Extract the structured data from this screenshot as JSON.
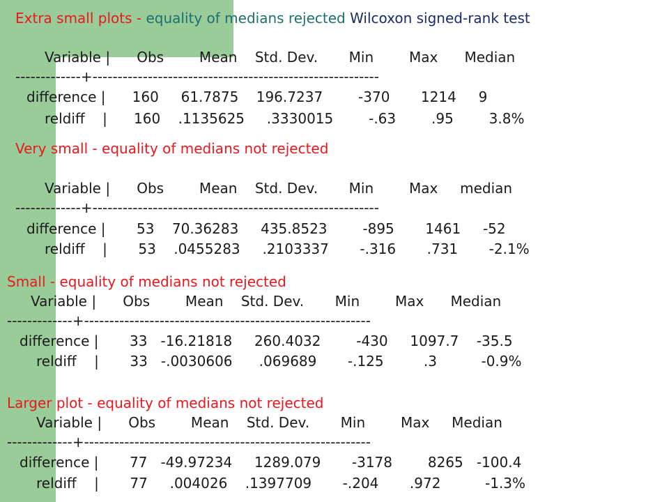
{
  "sections": [
    {
      "title_red": "Extra small plots - ",
      "title_teal": "equality of medians rejected",
      "title_navy": " Wilcoxon signed-rank test",
      "header": "Variable |      Obs        Mean    Std. Dev.       Min        Max      Median",
      "rule": "-------------+---------------------------------------------------------",
      "rows": [
        "difference |      160     61.7875    196.7237        -370       1214     9",
        "reldiff    |      160    .1135625     .3330015        -.63        .95        3.8%"
      ]
    },
    {
      "title_red": "Very small - equality of medians not rejected",
      "header": "Variable |      Obs        Mean    Std. Dev.       Min        Max     median",
      "rule": "-------------+---------------------------------------------------------",
      "rows": [
        "difference |       53    70.36283     435.8523        -895       1461     -52",
        "reldiff    |       53    .0455283     .2103337       -.316       .731       -2.1%"
      ]
    },
    {
      "title_red": "Small - equality of medians not rejected",
      "header": "Variable |      Obs        Mean    Std. Dev.       Min        Max      Median",
      "rule": "-------------+---------------------------------------------------------",
      "rows": [
        "difference |       33   -16.21818     260.4032        -430     1097.7    -35.5",
        "reldiff    |       33   -.0030606      .069689       -.125         .3          -0.9%"
      ]
    },
    {
      "title_red": "Larger plot - equality of medians not rejected",
      "header": "Variable |      Obs        Mean    Std. Dev.       Min        Max     Median",
      "rule": "-------------+---------------------------------------------------------",
      "rows": [
        "difference |       77   -49.97234     1289.079       -3178        8265   -100.4",
        "reldiff    |       77     .004026    .1397709       -.204       .972          -1.3%"
      ]
    }
  ]
}
